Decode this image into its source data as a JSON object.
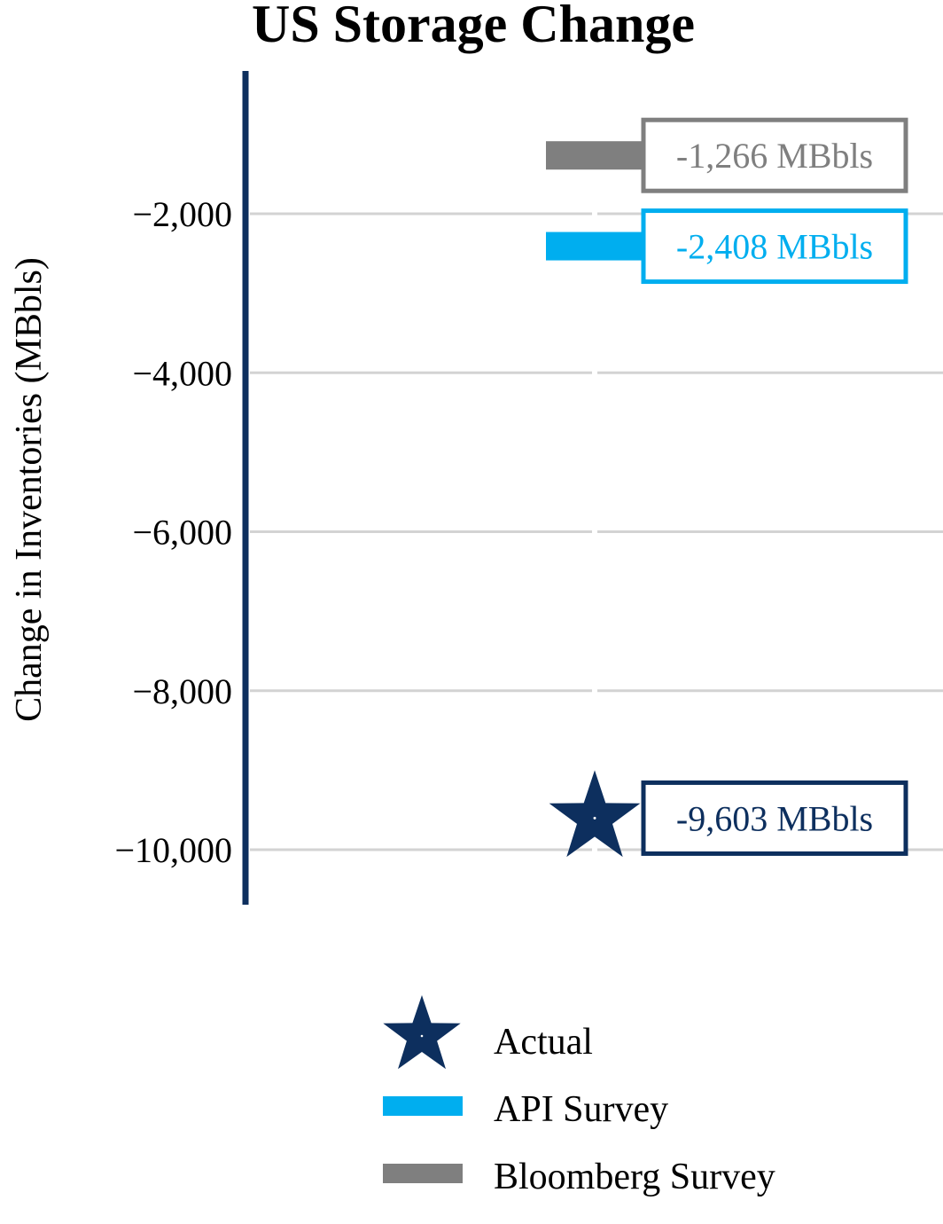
{
  "chart_data": {
    "type": "scatter",
    "title": "US Storage Change",
    "xlabel": "",
    "ylabel": "Change in Inventories (MBbls)",
    "ylim": [
      -10700,
      -200
    ],
    "yticks": [
      -2000,
      -4000,
      -6000,
      -8000,
      -10000
    ],
    "ytick_labels": [
      "−2,000",
      "−4,000",
      "−6,000",
      "−8,000",
      "−10,000"
    ],
    "grid": true,
    "legend_position": "bottom",
    "series": [
      {
        "name": "Actual",
        "marker": "star",
        "value": -9603,
        "label": "-9,603 MBbls",
        "color": "#0d2f5e"
      },
      {
        "name": "API Survey",
        "marker": "bar",
        "value": -2408,
        "label": "-2,408 MBbls",
        "color": "#00aeef"
      },
      {
        "name": "Bloomberg Survey",
        "marker": "bar",
        "value": -1266,
        "label": "-1,266 MBbls",
        "color": "#7f7f7f"
      }
    ]
  }
}
